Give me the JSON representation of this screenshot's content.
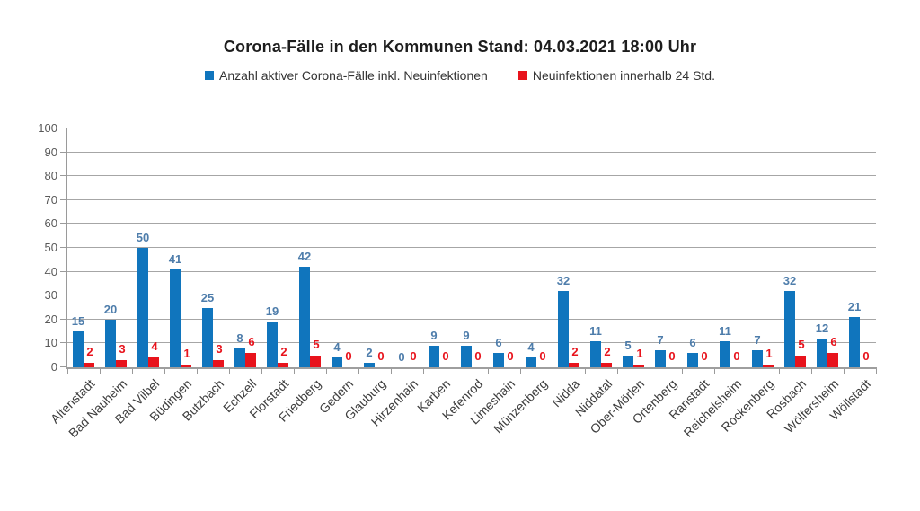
{
  "chart_data": {
    "type": "bar",
    "title": "Corona-Fälle in den Kommunen Stand: 04.03.2021 18:00 Uhr",
    "xlabel": "",
    "ylabel": "",
    "ylim": [
      0,
      100
    ],
    "yticks": [
      0,
      10,
      20,
      30,
      40,
      50,
      60,
      70,
      80,
      90,
      100
    ],
    "grid": true,
    "legend_position": "top",
    "categories": [
      "Altenstadt",
      "Bad Nauheim",
      "Bad Vilbel",
      "Büdingen",
      "Butzbach",
      "Echzell",
      "Florstadt",
      "Friedberg",
      "Gedern",
      "Glauburg",
      "Hirzenhain",
      "Karben",
      "Kefenrod",
      "Limeshain",
      "Münzenberg",
      "Nidda",
      "Niddatal",
      "Ober-Mörlen",
      "Ortenberg",
      "Ranstadt",
      "Reichelsheim",
      "Rockenberg",
      "Rosbach",
      "Wölfersheim",
      "Wöllstadt"
    ],
    "series": [
      {
        "name": "Anzahl aktiver Corona-Fälle inkl. Neuinfektionen",
        "color": "#1075bd",
        "label_color": "#4e7dab",
        "values": [
          15,
          20,
          50,
          41,
          25,
          8,
          19,
          42,
          4,
          2,
          0,
          9,
          9,
          6,
          4,
          32,
          11,
          5,
          7,
          6,
          11,
          7,
          32,
          12,
          21
        ]
      },
      {
        "name": "Neuinfektionen innerhalb 24 Std.",
        "color": "#e8131c",
        "label_color": "#e8131c",
        "values": [
          2,
          3,
          4,
          1,
          3,
          6,
          2,
          5,
          0,
          0,
          0,
          0,
          0,
          0,
          0,
          2,
          2,
          1,
          0,
          0,
          0,
          1,
          5,
          6,
          0
        ]
      }
    ]
  }
}
